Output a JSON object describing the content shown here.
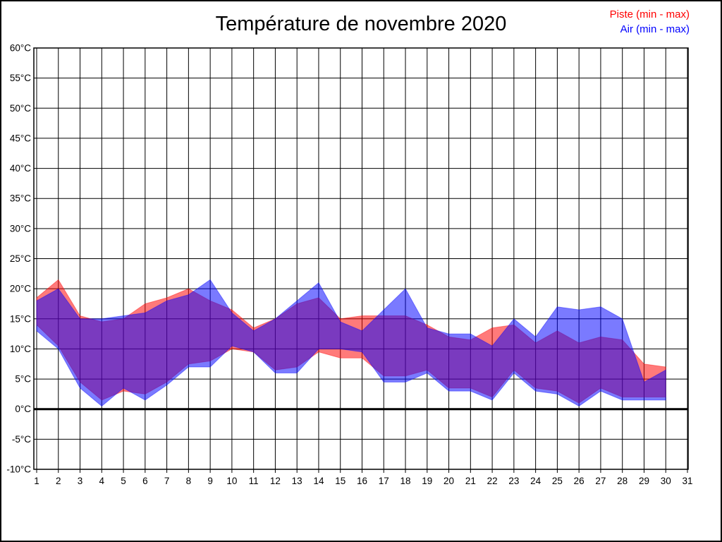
{
  "page": {
    "background_color": "#ffffff",
    "border_color": "#000000"
  },
  "chart_data": {
    "type": "area",
    "subtype": "min-max range bands",
    "title": "Température de novembre 2020",
    "grid": "on",
    "x_axis": {
      "label": "",
      "range": [
        1,
        31
      ],
      "tick_labels": [
        "1",
        "2",
        "3",
        "4",
        "5",
        "6",
        "7",
        "8",
        "9",
        "10",
        "11",
        "12",
        "13",
        "14",
        "15",
        "16",
        "17",
        "18",
        "19",
        "20",
        "21",
        "22",
        "23",
        "24",
        "25",
        "26",
        "27",
        "28",
        "29",
        "30",
        "31"
      ]
    },
    "y_axis": {
      "label": "",
      "range": [
        -10,
        60
      ],
      "step": 5,
      "unit": "°C",
      "tick_labels": [
        "60°C",
        "55°C",
        "50°C",
        "45°C",
        "40°C",
        "35°C",
        "30°C",
        "25°C",
        "20°C",
        "15°C",
        "10°C",
        "5°C",
        "0°C",
        "-5°C",
        "-10°C"
      ],
      "zero_line_bold": true
    },
    "legend": {
      "position": "top-right",
      "entries": [
        {
          "label": "Piste (min - max)",
          "color": "#ff0000"
        },
        {
          "label": "Air (min - max)",
          "color": "#0000ff"
        }
      ]
    },
    "days": [
      1,
      2,
      3,
      4,
      5,
      6,
      7,
      8,
      9,
      10,
      11,
      12,
      13,
      14,
      15,
      16,
      17,
      18,
      19,
      20,
      21,
      22,
      23,
      24,
      25,
      26,
      27,
      28,
      29,
      30
    ],
    "series": [
      {
        "name": "Piste",
        "color": "#ff0000",
        "fill_opacity": 0.52,
        "min": [
          14,
          10.5,
          4.5,
          1.5,
          3,
          2.5,
          4.5,
          7.5,
          8,
          10,
          9.5,
          6.5,
          7,
          9.5,
          8.5,
          8.5,
          5.5,
          5.5,
          6.5,
          3.5,
          3.5,
          2,
          6.5,
          3.5,
          3,
          1,
          3.5,
          2,
          2,
          2
        ],
        "max": [
          18.5,
          21.5,
          15.5,
          14.5,
          15,
          17.5,
          18.5,
          20,
          18,
          16.5,
          13.5,
          15,
          17.5,
          18.5,
          15,
          15.5,
          15.5,
          15.5,
          14,
          12,
          11.5,
          13.5,
          14,
          11,
          13,
          11,
          12,
          11.5,
          7.5,
          7
        ]
      },
      {
        "name": "Air",
        "color": "#0000ff",
        "fill_opacity": 0.52,
        "min": [
          13,
          10,
          3.5,
          0.5,
          3.5,
          1.5,
          4,
          7,
          7,
          10.5,
          9.5,
          6,
          6,
          10,
          10,
          9.5,
          4.5,
          4.5,
          6,
          3,
          3,
          1.5,
          6,
          3,
          2.5,
          0.5,
          3,
          1.5,
          1.5,
          1.5
        ],
        "max": [
          18,
          20,
          15,
          15,
          15.5,
          16,
          18,
          19,
          21.5,
          16,
          13,
          15,
          18,
          21,
          14.5,
          13,
          16.5,
          20,
          13.5,
          12.5,
          12.5,
          10.5,
          15,
          12,
          17,
          16.5,
          17,
          15,
          4.5,
          6.5
        ]
      }
    ]
  }
}
